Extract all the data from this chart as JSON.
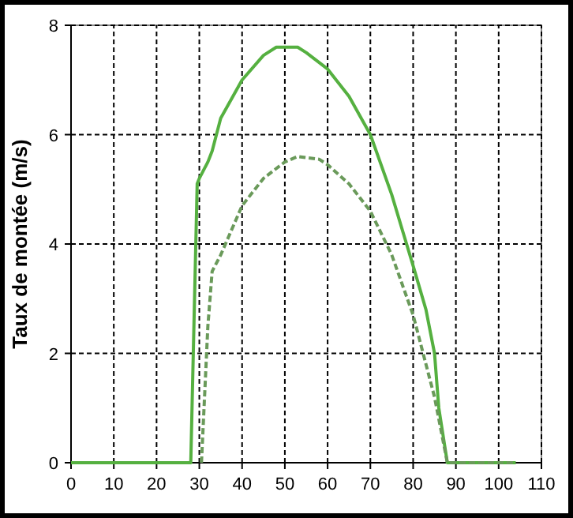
{
  "chart_data": {
    "type": "line",
    "ylabel": "Taux de montée (m/s)",
    "xlim": [
      0,
      110
    ],
    "xticks": [
      0,
      10,
      20,
      30,
      40,
      50,
      60,
      70,
      80,
      90,
      100,
      110
    ],
    "ylim": [
      0,
      8
    ],
    "yticks": [
      0,
      2,
      4,
      6,
      8
    ],
    "grid": true,
    "series": [
      {
        "color": "#55b040",
        "line_style": "solid",
        "x": [
          0,
          28,
          29.5,
          30,
          32,
          33,
          35,
          40,
          45,
          48,
          53,
          55,
          60,
          65,
          70,
          75,
          80,
          83,
          85,
          86,
          88,
          104
        ],
        "values": [
          0,
          0,
          5.1,
          5.2,
          5.5,
          5.7,
          6.3,
          7.0,
          7.45,
          7.6,
          7.6,
          7.5,
          7.2,
          6.7,
          6.0,
          4.9,
          3.6,
          2.8,
          2.0,
          1.0,
          0,
          0
        ]
      },
      {
        "color": "#6a9a5a",
        "line_style": "dashed",
        "x": [
          30.5,
          32,
          33,
          35,
          40,
          45,
          50,
          53,
          58,
          60,
          65,
          70,
          75,
          80,
          85,
          88,
          104
        ],
        "values": [
          0,
          2.5,
          3.5,
          3.8,
          4.7,
          5.2,
          5.5,
          5.6,
          5.55,
          5.45,
          5.1,
          4.6,
          3.8,
          2.7,
          1.2,
          0,
          0
        ]
      }
    ]
  }
}
